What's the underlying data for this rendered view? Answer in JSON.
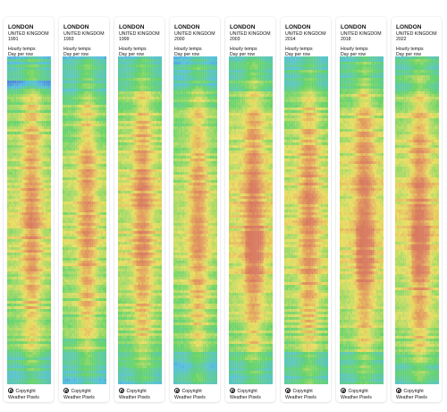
{
  "cards": [
    {
      "city": "LONDON",
      "country": "UNITED KINGDOM",
      "year": "1991",
      "description_line_1": "Hourly temps",
      "description_line_2": "Day per row",
      "copyright_label": "Copyright",
      "brand_label": "Weather Pixels",
      "warmth_profile": "mid-warm"
    },
    {
      "city": "LONDON",
      "country": "UNITED KINGDOM",
      "year": "1993",
      "description_line_1": "Hourly temps",
      "description_line_2": "Day per row",
      "copyright_label": "Copyright",
      "brand_label": "Weather Pixels",
      "warmth_profile": "mid"
    },
    {
      "city": "LONDON",
      "country": "UNITED KINGDOM",
      "year": "1999",
      "description_line_1": "Hourly temps",
      "description_line_2": "Day per row",
      "copyright_label": "Copyright",
      "brand_label": "Weather Pixels",
      "warmth_profile": "warm"
    },
    {
      "city": "LONDON",
      "country": "UNITED KINGDOM",
      "year": "2000",
      "description_line_1": "Hourly temps",
      "description_line_2": "Day per row",
      "copyright_label": "Copyright",
      "brand_label": "Weather Pixels",
      "warmth_profile": "mid"
    },
    {
      "city": "LONDON",
      "country": "UNITED KINGDOM",
      "year": "2003",
      "description_line_1": "Hourly temps",
      "description_line_2": "Day per row",
      "copyright_label": "Copyright",
      "brand_label": "Weather Pixels",
      "warmth_profile": "very-warm"
    },
    {
      "city": "LONDON",
      "country": "UNITED KINGDOM",
      "year": "2014",
      "description_line_1": "Hourly temps",
      "description_line_2": "Day per row",
      "copyright_label": "Copyright",
      "brand_label": "Weather Pixels",
      "warmth_profile": "warm"
    },
    {
      "city": "LONDON",
      "country": "UNITED KINGDOM",
      "year": "2018",
      "description_line_1": "Hourly temps",
      "description_line_2": "Day per row",
      "copyright_label": "Copyright",
      "brand_label": "Weather Pixels",
      "warmth_profile": "very-warm"
    },
    {
      "city": "LONDON",
      "country": "UNITED KINGDOM",
      "year": "2022",
      "description_line_1": "Hourly temps",
      "description_line_2": "Day per row",
      "copyright_label": "Copyright",
      "brand_label": "Weather Pixels",
      "warmth_profile": "very-warm"
    }
  ],
  "colors": {
    "card_background": "#ffffff",
    "text": "#111111",
    "cold": "#4f73d8",
    "cool": "#56c0df",
    "mild": "#66d46a",
    "warm": "#e9df62",
    "hot": "#e3a15e",
    "very_hot": "#d87a5f"
  }
}
